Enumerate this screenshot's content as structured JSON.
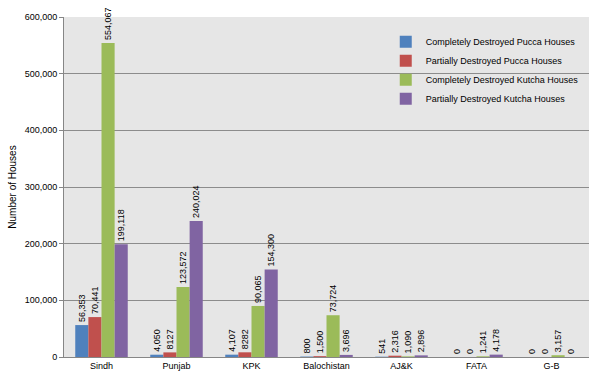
{
  "chart_data": {
    "type": "bar",
    "ylabel": "Number of Houses",
    "categories": [
      "Sindh",
      "Punjab",
      "KPK",
      "Balochistan",
      "AJ&K",
      "FATA",
      "G-B"
    ],
    "series": [
      {
        "name": "Completely Destroyed Pucca Houses",
        "color": "#4f81bd",
        "values": [
          56353,
          4050,
          4107,
          800,
          541,
          0,
          0
        ],
        "value_labels": [
          "56,353",
          "4,050",
          "4,107",
          "800",
          "541",
          "0",
          "0"
        ]
      },
      {
        "name": "Partially Destroyed Pucca Houses",
        "color": "#c0504d",
        "values": [
          70441,
          8127,
          8282,
          1500,
          2316,
          0,
          0
        ],
        "value_labels": [
          "70,441",
          "8127",
          "8282",
          "1,500",
          "2,316",
          "0",
          "0"
        ]
      },
      {
        "name": "Completely Destroyed Kutcha Houses",
        "color": "#9bbb59",
        "values": [
          554067,
          123572,
          90065,
          73724,
          1090,
          1241,
          3157
        ],
        "value_labels": [
          "554,067",
          "123,572",
          "90,065",
          "73,724",
          "1,090",
          "1,241",
          "3,157"
        ]
      },
      {
        "name": "Partially Destroyed Kutcha Houses",
        "color": "#8064a2",
        "values": [
          199118,
          240024,
          154300,
          3696,
          2896,
          4178,
          0
        ],
        "value_labels": [
          "199,118",
          "240,024",
          "154,300",
          "3,696",
          "2,896",
          "4,178",
          "0"
        ]
      }
    ],
    "ylim": [
      0,
      600000
    ],
    "yticks": [
      0,
      {
        "value": 100000,
        "label": "100,000"
      },
      {
        "value": 200000,
        "label": "200,000"
      },
      {
        "value": 300000,
        "label": "300,000"
      },
      {
        "value": 400000,
        "label": "400,000"
      },
      {
        "value": 500000,
        "label": "500,000"
      },
      {
        "value": 600000,
        "label": "600,000"
      }
    ],
    "grid": true,
    "legend": "top right",
    "data_labels": true
  }
}
